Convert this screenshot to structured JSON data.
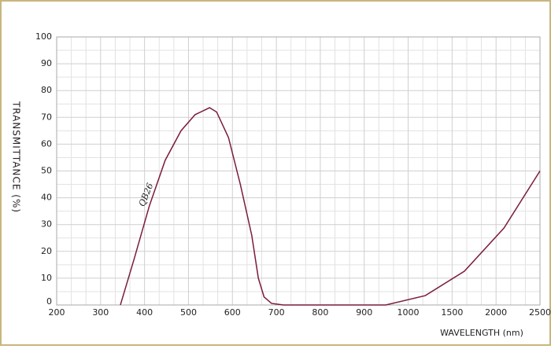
{
  "chart_data": {
    "type": "line",
    "xlabel": "WAVELENGTH (nm)",
    "ylabel": "TRANSMITTANCE (%)",
    "annotation": "QB26",
    "series": [
      {
        "name": "QB26",
        "color": "#7a1c3c",
        "x": [
          345,
          376,
          411,
          447,
          483,
          515,
          548,
          564,
          591,
          618,
          644,
          659,
          672,
          689,
          716,
          949,
          1195,
          1640,
          2090,
          2500
        ],
        "values": [
          0,
          17,
          37,
          54,
          65,
          71,
          73.6,
          72,
          62.5,
          45,
          26,
          10,
          3,
          0.6,
          0,
          0,
          3.5,
          12.6,
          28.7,
          50
        ]
      }
    ],
    "xlim": [
      200,
      2500
    ],
    "xticks": [
      200,
      300,
      400,
      500,
      600,
      700,
      800,
      900,
      1000,
      1500,
      2000,
      2500
    ],
    "ylim": [
      0,
      100
    ],
    "yticks": [
      0,
      10,
      20,
      30,
      40,
      50,
      60,
      70,
      80,
      90,
      100
    ],
    "grid": true
  }
}
